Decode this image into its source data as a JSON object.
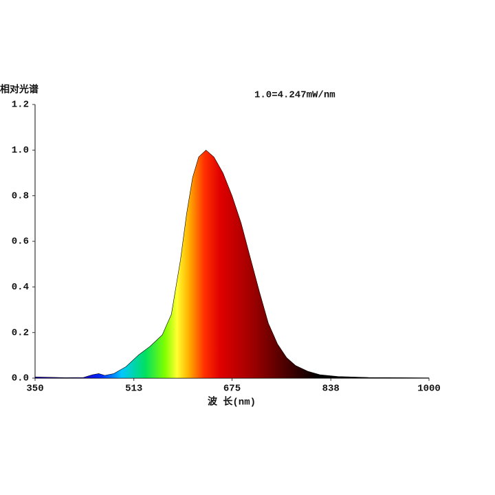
{
  "chart_data": {
    "type": "area",
    "y_label": "相对光谱",
    "x_label": "波 长(nm)",
    "annotation": "1.0=4.247mW/nm",
    "x": [
      350,
      400,
      430,
      445,
      455,
      465,
      480,
      500,
      520,
      540,
      560,
      575,
      590,
      600,
      610,
      620,
      632,
      645,
      660,
      675,
      690,
      705,
      720,
      735,
      750,
      765,
      780,
      800,
      820,
      850,
      900,
      950,
      1000
    ],
    "values": [
      0.005,
      0.002,
      0.003,
      0.015,
      0.02,
      0.012,
      0.02,
      0.05,
      0.1,
      0.14,
      0.19,
      0.28,
      0.52,
      0.72,
      0.88,
      0.97,
      1.0,
      0.97,
      0.9,
      0.8,
      0.68,
      0.53,
      0.38,
      0.24,
      0.15,
      0.09,
      0.055,
      0.03,
      0.015,
      0.007,
      0.003,
      0.002,
      0.001
    ],
    "xlim": [
      350,
      1000
    ],
    "xticks": [
      350,
      513,
      675,
      838,
      1000
    ],
    "ylim": [
      0,
      1.2
    ],
    "yticks": [
      {
        "value": 0,
        "label": "0.0"
      },
      0.2,
      0.4,
      0.6,
      0.8,
      {
        "value": 1,
        "label": "1.0"
      },
      1.2
    ]
  }
}
